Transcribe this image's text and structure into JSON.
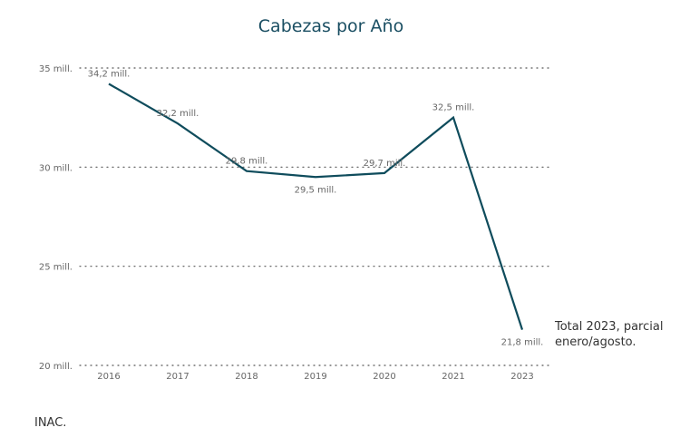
{
  "chart_data": {
    "type": "line",
    "title": "Cabezas por Año",
    "categories": [
      "2016",
      "2017",
      "2018",
      "2019",
      "2020",
      "2021",
      "2023"
    ],
    "series": [
      {
        "values": [
          34.2,
          32.2,
          29.8,
          29.5,
          29.7,
          32.5,
          21.8
        ],
        "color": "#0f4c5c"
      }
    ],
    "data_labels": [
      "34,2 mill.",
      "32,2 mill.",
      "29,8 mill.",
      "29,5 mill.",
      "29,7 mill.",
      "32,5 mill.",
      "21,8 mill."
    ],
    "yticks": [
      35,
      30,
      25,
      20
    ],
    "ytick_labels": [
      "35 mill.",
      "30 mill.",
      "25 mill.",
      "20 mill."
    ],
    "ylim": [
      20,
      35
    ],
    "grid": "horizontal dotted",
    "annotation": "Total 2023, parcial enero/agosto.",
    "xlabel": "",
    "ylabel": ""
  },
  "source": "INAC."
}
